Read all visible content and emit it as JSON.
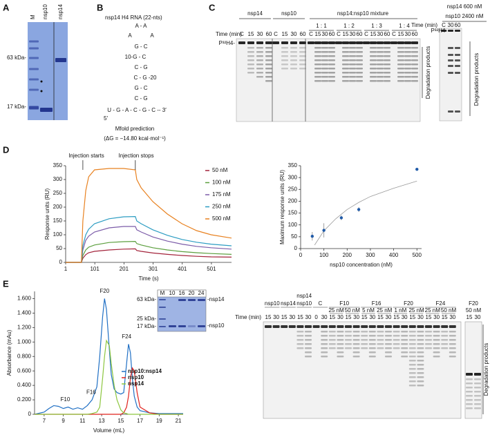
{
  "panels": {
    "A": {
      "letter": "A",
      "lanes": [
        "M",
        "nsp10",
        "nsp14"
      ],
      "markers": [
        "63 kDa-",
        "17 kDa-"
      ]
    },
    "B": {
      "letter": "B",
      "title": "nsp14 H4 RNA (22-nts)",
      "structure": [
        "A - A",
        "A",
        "A",
        "G - C",
        "10-G - C",
        "C - G",
        "C - G -20",
        "G - C",
        "C - G",
        "U - G - A - C - G - C -- 3′",
        "5′"
      ],
      "method": "Mfold prediction",
      "energy": "(ΔG = −14.80 kcal·mol⁻¹)"
    },
    "C": {
      "letter": "C",
      "time_label": "Time (min)",
      "groups": [
        {
          "name": "nsp14",
          "lanes": [
            "C",
            "15",
            "30",
            "60"
          ]
        },
        {
          "name": "nsp10",
          "lanes": [
            "C",
            "15",
            "30",
            "60"
          ]
        }
      ],
      "mixture": {
        "name": "nsp14:nsp10 mixture",
        "ratios": [
          {
            "name": "1 : 1",
            "lanes": [
              "C",
              "15",
              "30",
              "60"
            ]
          },
          {
            "name": "1 : 2",
            "lanes": [
              "C",
              "15",
              "30",
              "60"
            ]
          },
          {
            "name": "1 : 3",
            "lanes": [
              "C",
              "15",
              "30",
              "60"
            ]
          },
          {
            "name": "1 : 4",
            "lanes": [
              "C",
              "15",
              "30",
              "60"
            ]
          }
        ]
      },
      "substrate": "P³²H4-",
      "degradation": "Degradation products",
      "side": {
        "conditions": [
          "nsp14 600 nM",
          "nsp10 2400 nM"
        ],
        "time_label": "Time (min)",
        "lanes": [
          "C",
          "30",
          "60"
        ],
        "substrate": "P³²H4-",
        "degradation": "Degradation products"
      }
    },
    "D": {
      "letter": "D"
    },
    "E": {
      "letter": "E",
      "inset": {
        "lanes": [
          "M",
          "10",
          "16",
          "20",
          "24"
        ],
        "markers": [
          "63 kDa-",
          "25 kDa-",
          "17 kDa-"
        ],
        "proteins": [
          "-nsp14",
          "-nsp10"
        ]
      },
      "gel": {
        "header_top": "nsp14",
        "time_label": "Time (min)",
        "groups": [
          {
            "name": "nsp10",
            "conditions": [
              {
                "lanes": [
                  "15",
                  "30"
                ]
              }
            ]
          },
          {
            "name": "nsp14",
            "conditions": [
              {
                "lanes": [
                  "15",
                  "30"
                ]
              }
            ]
          },
          {
            "name": "nsp10",
            "conditions": [
              {
                "lanes": [
                  "15",
                  "30"
                ]
              }
            ]
          },
          {
            "name": "C",
            "conditions": [
              {
                "lanes": [
                  "0",
                  "30"
                ]
              }
            ]
          },
          {
            "name": "F10",
            "conditions": [
              {
                "conc": "25 nM",
                "lanes": [
                  "15",
                  "30"
                ]
              },
              {
                "conc": "50 nM",
                "lanes": [
                  "15",
                  "30"
                ]
              }
            ]
          },
          {
            "name": "F16",
            "conditions": [
              {
                "conc": "5 nM",
                "lanes": [
                  "15",
                  "30"
                ]
              },
              {
                "conc": "25 nM",
                "lanes": [
                  "15",
                  "30"
                ]
              }
            ]
          },
          {
            "name": "F20",
            "conditions": [
              {
                "conc": "1 nM",
                "lanes": [
                  "15",
                  "30"
                ]
              },
              {
                "conc": "25 nM",
                "lanes": [
                  "15",
                  "30"
                ]
              }
            ]
          },
          {
            "name": "F24",
            "conditions": [
              {
                "conc": "25 nM",
                "lanes": [
                  "15",
                  "30"
                ]
              },
              {
                "conc": "50 nM",
                "lanes": [
                  "15",
                  "30"
                ]
              }
            ]
          }
        ],
        "side": {
          "name": "F20",
          "conc": "50 nM",
          "lanes": [
            "15",
            "30"
          ]
        },
        "degradation": "Degradation products"
      }
    }
  },
  "chart_data": [
    {
      "type": "line",
      "x_label": "Time (s)",
      "y_label": "Response units (RU)",
      "annotations": [
        "Injection starts",
        "Injection stops"
      ],
      "x": [
        1,
        55,
        60,
        70,
        80,
        100,
        150,
        200,
        240,
        245,
        260,
        300,
        350,
        400,
        450,
        500,
        570
      ],
      "xlim": [
        1,
        570
      ],
      "xticks": [
        1,
        101,
        201,
        301,
        401,
        501
      ],
      "ylim": [
        0,
        350
      ],
      "yticks": [
        0,
        50,
        100,
        150,
        200,
        250,
        300,
        350
      ],
      "series": [
        {
          "name": "50 nM",
          "color": "#a3223a",
          "values": [
            0,
            0,
            15,
            28,
            35,
            40,
            45,
            48,
            49,
            43,
            40,
            34,
            29,
            25,
            22,
            20,
            19
          ]
        },
        {
          "name": "100 nM",
          "color": "#5a9e3c",
          "values": [
            0,
            0,
            25,
            45,
            55,
            63,
            72,
            75,
            76,
            68,
            63,
            53,
            45,
            39,
            35,
            32,
            29
          ]
        },
        {
          "name": "175 nM",
          "color": "#7b5ba8",
          "values": [
            0,
            0,
            45,
            80,
            95,
            110,
            125,
            130,
            130,
            118,
            110,
            92,
            77,
            66,
            58,
            53,
            48
          ]
        },
        {
          "name": "250 nM",
          "color": "#2b9cc2",
          "values": [
            0,
            0,
            60,
            100,
            120,
            140,
            158,
            165,
            166,
            150,
            140,
            118,
            98,
            83,
            73,
            66,
            60
          ]
        },
        {
          "name": "500 nM",
          "color": "#e8811f",
          "values": [
            0,
            0,
            150,
            260,
            310,
            335,
            340,
            340,
            335,
            300,
            270,
            220,
            175,
            140,
            115,
            100,
            88
          ]
        }
      ]
    },
    {
      "type": "scatter",
      "x_label": "nsp10 concentration (nM)",
      "y_label": "Maximum response units (RU)",
      "x": [
        50,
        100,
        175,
        250,
        500
      ],
      "values": [
        52,
        77,
        130,
        165,
        335
      ],
      "errors": [
        18,
        30,
        10,
        10,
        5
      ],
      "color": "#1f5aa8",
      "fit": {
        "x": [
          60,
          100,
          150,
          200,
          250,
          300,
          400,
          500
        ],
        "values": [
          15,
          75,
          125,
          165,
          195,
          220,
          255,
          285
        ],
        "color": "#999999"
      },
      "xlim": [
        0,
        520
      ],
      "xticks": [
        0,
        100,
        200,
        300,
        400,
        500
      ],
      "ylim": [
        0,
        350
      ],
      "yticks": [
        0,
        50,
        100,
        150,
        200,
        250,
        300,
        350
      ]
    },
    {
      "type": "line",
      "x_label": "Volume (mL)",
      "y_label": "Absorbance (mAu)",
      "annotations": [
        "F10",
        "F16",
        "F20",
        "F24"
      ],
      "x": [
        6,
        7,
        7.5,
        8,
        8.5,
        9,
        9.5,
        10,
        10.5,
        11,
        11.5,
        12,
        12.5,
        12.8,
        13.1,
        13.3,
        13.5,
        13.8,
        14,
        14.3,
        14.6,
        15,
        15.3,
        15.6,
        15.8,
        16,
        16.2,
        16.4,
        16.7,
        17,
        18,
        19,
        20,
        21.5
      ],
      "xlim": [
        6,
        21.5
      ],
      "xticks": [
        7,
        9,
        11,
        13,
        15,
        17,
        19,
        21
      ],
      "ylim": [
        0,
        1.7
      ],
      "yticks": [
        0,
        {
          "value": 0.2,
          "label": "0.200"
        },
        {
          "value": 0.4,
          "label": "0.400"
        },
        {
          "value": 0.6,
          "label": "0.600"
        },
        {
          "value": 0.8,
          "label": "0.800"
        },
        {
          "value": 1.0,
          "label": "1.000"
        },
        {
          "value": 1.2,
          "label": "1.200"
        },
        {
          "value": 1.4,
          "label": "1.400"
        },
        {
          "value": 1.6,
          "label": "1.600"
        }
      ],
      "series": [
        {
          "name": "nsp10:nsp14",
          "color": "#1f6fc4",
          "values": [
            0,
            0.03,
            0.08,
            0.12,
            0.11,
            0.08,
            0.1,
            0.07,
            0.09,
            0.07,
            0.12,
            0.2,
            0.38,
            0.8,
            1.35,
            1.6,
            1.45,
            0.9,
            0.55,
            0.35,
            0.3,
            0.28,
            0.3,
            0.7,
            0.97,
            0.85,
            0.5,
            0.25,
            0.1,
            0.05,
            0.02,
            0.01,
            0.01,
            0.01
          ]
        },
        {
          "name": "nsp10",
          "color": "#e0201b",
          "values": [
            0,
            0,
            0,
            0,
            0,
            0,
            0,
            0,
            0,
            0,
            0,
            0,
            0,
            0,
            0,
            0,
            0,
            0,
            0,
            0,
            0,
            0,
            0.02,
            0.1,
            0.25,
            0.5,
            0.64,
            0.6,
            0.3,
            0.1,
            0.02,
            0,
            0,
            0
          ]
        },
        {
          "name": "nsp14",
          "color": "#8cc63e",
          "values": [
            0,
            0,
            0,
            0,
            0,
            0,
            0,
            0,
            0,
            0,
            0,
            0.01,
            0.03,
            0.1,
            0.5,
            0.8,
            1.02,
            0.95,
            0.7,
            0.4,
            0.2,
            0.06,
            0.02,
            0.01,
            0,
            0,
            0,
            0,
            0,
            0,
            0,
            0,
            0,
            0
          ]
        }
      ]
    }
  ]
}
